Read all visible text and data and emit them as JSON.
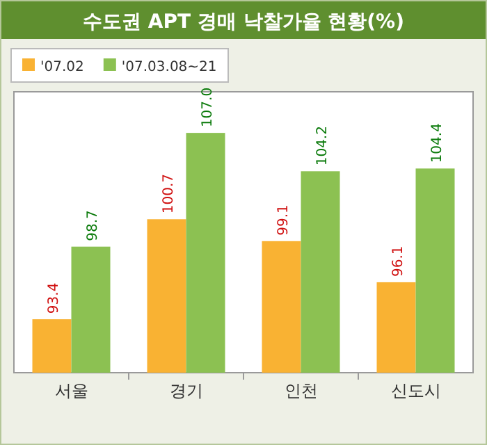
{
  "chart_data": {
    "type": "bar",
    "title": "수도권 APT 경매 낙찰가율 현황(%)",
    "categories": [
      "서울",
      "경기",
      "인천",
      "신도시"
    ],
    "series": [
      {
        "name": "'07.02",
        "color": "#f9b233",
        "values": [
          93.4,
          100.7,
          99.1,
          96.1
        ],
        "value_labels": [
          "93.4",
          "100.7",
          "99.1",
          "96.1"
        ]
      },
      {
        "name": "'07.03.08~21",
        "color": "#8cc152",
        "values": [
          98.7,
          107.0,
          104.2,
          104.4
        ],
        "value_labels": [
          "98.7",
          "107.0",
          "104.2",
          "104.4"
        ]
      }
    ],
    "ylim": [
      89.5,
      110
    ],
    "legend": "top left"
  }
}
